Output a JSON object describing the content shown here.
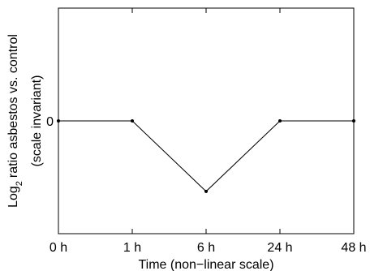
{
  "chart_data": {
    "type": "line",
    "categories": [
      "0 h",
      "1 h",
      "6 h",
      "24 h",
      "48 h"
    ],
    "series": [
      {
        "values": [
          0,
          0,
          -1,
          0,
          0
        ]
      }
    ],
    "ytick_labels": [
      "0"
    ],
    "xlabel": "Time (non−linear scale)",
    "ylabel_main": "ratio asbestos vs. control",
    "ylabel_log": "Log",
    "ylabel_log_sub": "2",
    "ylabel_line2": "(scale invariant)",
    "ylim": [
      -1.6,
      1.6
    ],
    "grid": false,
    "colors": {
      "line": "#000000",
      "axes": "#000000"
    }
  }
}
